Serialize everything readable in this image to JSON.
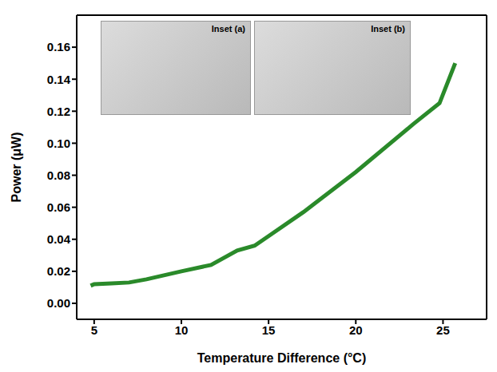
{
  "chart_data": {
    "type": "line",
    "x_label": "Temperature Difference (°C)",
    "y_label": "Power (μW)",
    "annotations": [
      "Inset (a)",
      "Inset (b)"
    ],
    "x": [
      4.8,
      5.0,
      6.0,
      7.0,
      8.0,
      10.0,
      11.7,
      13.2,
      14.2,
      15.0,
      17.0,
      20.0,
      23.3,
      24.8,
      25.7
    ],
    "series": [
      {
        "name": "Power",
        "color": "#2a8a2a",
        "values": [
          0.011,
          0.012,
          0.0125,
          0.013,
          0.015,
          0.02,
          0.024,
          0.033,
          0.036,
          0.042,
          0.057,
          0.082,
          0.112,
          0.125,
          0.15
        ]
      }
    ],
    "xlim": [
      4,
      27.5
    ],
    "xticks": [
      5,
      10,
      15,
      20,
      25
    ],
    "ylim": [
      -0.01,
      0.18
    ],
    "yticks": [
      {
        "value": 0,
        "label": "0.00"
      },
      {
        "value": 0.02,
        "label": "0.02"
      },
      {
        "value": 0.04,
        "label": "0.04"
      },
      {
        "value": 0.06,
        "label": "0.06"
      },
      {
        "value": 0.08,
        "label": "0.08"
      },
      {
        "value": 0.1,
        "label": "0.10"
      },
      {
        "value": 0.12,
        "label": "0.12"
      },
      {
        "value": 0.14,
        "label": "0.14"
      },
      {
        "value": 0.16,
        "label": "0.16"
      }
    ],
    "grid": false
  }
}
